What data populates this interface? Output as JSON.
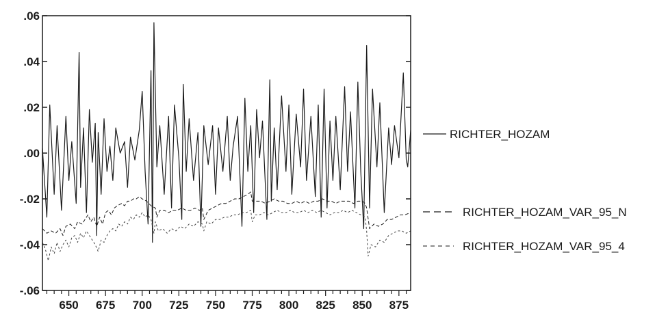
{
  "chart_data": {
    "type": "line",
    "title": "",
    "xlabel": "",
    "ylabel": "",
    "xlim": [
      632,
      883
    ],
    "ylim": [
      -0.06,
      0.06
    ],
    "grid": false,
    "legend_position": "right",
    "x_ticks": [
      650,
      675,
      700,
      725,
      750,
      775,
      800,
      825,
      850,
      875
    ],
    "x_tick_labels": [
      "650",
      "675",
      "700",
      "725",
      "750",
      "775",
      "800",
      "825",
      "850",
      "875"
    ],
    "y_ticks": [
      0.06,
      0.04,
      0.02,
      0.0,
      -0.02,
      -0.04,
      -0.06
    ],
    "y_tick_labels": [
      ".06",
      ".04",
      ".02",
      ".00",
      "-.02",
      "-.04",
      "-.06"
    ],
    "series": [
      {
        "name": "RICHTER_HOZAM",
        "style": "solid",
        "color": "#1a1a1a",
        "x": [
          632,
          635,
          637,
          640,
          642,
          645,
          648,
          650,
          652,
          655,
          657,
          658,
          660,
          662,
          664,
          666,
          668,
          669,
          670,
          672,
          674,
          676,
          678,
          680,
          682,
          685,
          688,
          690,
          692,
          695,
          698,
          700,
          702,
          704,
          706,
          707,
          708,
          710,
          712,
          715,
          718,
          720,
          722,
          725,
          727,
          728,
          730,
          732,
          735,
          738,
          740,
          742,
          745,
          748,
          750,
          752,
          755,
          758,
          760,
          762,
          765,
          768,
          770,
          772,
          774,
          776,
          778,
          780,
          782,
          785,
          787,
          788,
          790,
          792,
          795,
          798,
          800,
          802,
          805,
          808,
          810,
          812,
          815,
          818,
          820,
          822,
          824,
          826,
          828,
          830,
          832,
          835,
          838,
          840,
          842,
          845,
          847,
          849,
          851,
          853,
          855,
          857,
          860,
          862,
          865,
          868,
          870,
          872,
          875,
          878,
          880,
          881,
          883
        ],
        "y": [
          0.002,
          -0.028,
          0.021,
          -0.018,
          0.012,
          -0.025,
          0.016,
          -0.012,
          0.005,
          -0.022,
          0.044,
          -0.015,
          0.011,
          -0.026,
          0.019,
          -0.004,
          0.013,
          -0.036,
          0.009,
          -0.018,
          0.015,
          -0.008,
          0.003,
          -0.012,
          0.011,
          0.0,
          0.005,
          -0.015,
          0.007,
          -0.003,
          0.01,
          0.027,
          -0.008,
          -0.031,
          0.036,
          -0.039,
          0.057,
          -0.006,
          0.012,
          -0.018,
          0.016,
          -0.024,
          0.021,
          -0.002,
          -0.029,
          0.03,
          -0.008,
          0.015,
          -0.012,
          0.009,
          -0.032,
          0.012,
          -0.005,
          0.012,
          -0.018,
          0.011,
          -0.008,
          0.016,
          -0.012,
          0.003,
          0.016,
          -0.032,
          0.024,
          -0.008,
          0.012,
          -0.026,
          0.019,
          -0.002,
          0.014,
          -0.029,
          0.032,
          -0.021,
          0.011,
          -0.016,
          0.025,
          -0.008,
          0.021,
          -0.018,
          0.017,
          -0.006,
          0.028,
          -0.012,
          0.016,
          -0.019,
          0.021,
          -0.028,
          0.028,
          -0.024,
          0.014,
          -0.012,
          0.016,
          -0.016,
          0.029,
          -0.008,
          0.018,
          -0.024,
          0.031,
          -0.008,
          -0.033,
          0.047,
          -0.024,
          0.028,
          -0.006,
          0.022,
          -0.026,
          0.011,
          -0.005,
          0.012,
          -0.002,
          0.035,
          -0.003,
          -0.006,
          0.01
        ]
      },
      {
        "name": "RICHTER_HOZAM_VAR_95_N",
        "style": "long-dash",
        "color": "#1a1a1a",
        "x": [
          632,
          635,
          638,
          641,
          644,
          646,
          648,
          651,
          654,
          656,
          659,
          661,
          663,
          665,
          667,
          669,
          671,
          673,
          675,
          677,
          679,
          681,
          683,
          686,
          688,
          690,
          692,
          694,
          696,
          698,
          700,
          703,
          706,
          709,
          710,
          712,
          715,
          718,
          721,
          724,
          727,
          730,
          733,
          736,
          739,
          741,
          742,
          745,
          748,
          751,
          754,
          757,
          760,
          763,
          766,
          769,
          772,
          774,
          775,
          778,
          781,
          784,
          787,
          790,
          793,
          796,
          799,
          802,
          805,
          808,
          811,
          814,
          817,
          820,
          823,
          826,
          829,
          832,
          835,
          838,
          841,
          844,
          847,
          850,
          852,
          853,
          855,
          858,
          861,
          864,
          867,
          870,
          873,
          876,
          879,
          883
        ],
        "y": [
          -0.033,
          -0.035,
          -0.034,
          -0.035,
          -0.033,
          -0.036,
          -0.032,
          -0.031,
          -0.033,
          -0.03,
          -0.031,
          -0.029,
          -0.027,
          -0.03,
          -0.028,
          -0.032,
          -0.028,
          -0.031,
          -0.026,
          -0.025,
          -0.027,
          -0.024,
          -0.023,
          -0.022,
          -0.023,
          -0.021,
          -0.021,
          -0.02,
          -0.02,
          -0.019,
          -0.02,
          -0.021,
          -0.023,
          -0.024,
          -0.028,
          -0.025,
          -0.025,
          -0.026,
          -0.025,
          -0.025,
          -0.024,
          -0.025,
          -0.025,
          -0.024,
          -0.025,
          -0.024,
          -0.029,
          -0.025,
          -0.024,
          -0.023,
          -0.022,
          -0.022,
          -0.021,
          -0.02,
          -0.02,
          -0.019,
          -0.018,
          -0.017,
          -0.021,
          -0.021,
          -0.021,
          -0.022,
          -0.021,
          -0.02,
          -0.021,
          -0.021,
          -0.022,
          -0.022,
          -0.021,
          -0.022,
          -0.021,
          -0.022,
          -0.021,
          -0.021,
          -0.02,
          -0.021,
          -0.021,
          -0.022,
          -0.021,
          -0.021,
          -0.021,
          -0.022,
          -0.021,
          -0.021,
          -0.022,
          -0.024,
          -0.033,
          -0.031,
          -0.032,
          -0.031,
          -0.029,
          -0.029,
          -0.028,
          -0.027,
          -0.027,
          -0.026
        ]
      },
      {
        "name": "RICHTER_HOZAM_VAR_95_4",
        "style": "short-dash",
        "color": "#444444",
        "x": [
          632,
          634,
          636,
          638,
          640,
          642,
          644,
          646,
          648,
          650,
          652,
          654,
          656,
          658,
          660,
          662,
          664,
          666,
          668,
          670,
          672,
          674,
          676,
          678,
          680,
          682,
          684,
          686,
          688,
          690,
          692,
          694,
          696,
          698,
          700,
          702,
          704,
          706,
          708,
          709,
          711,
          714,
          717,
          720,
          723,
          726,
          729,
          732,
          735,
          738,
          741,
          742,
          744,
          747,
          750,
          753,
          756,
          759,
          762,
          765,
          768,
          771,
          774,
          775,
          777,
          780,
          783,
          786,
          789,
          792,
          795,
          798,
          801,
          804,
          807,
          810,
          813,
          816,
          819,
          822,
          825,
          828,
          831,
          834,
          837,
          840,
          843,
          846,
          849,
          852,
          853,
          854,
          856,
          859,
          862,
          865,
          868,
          871,
          874,
          877,
          880,
          883
        ],
        "y": [
          -0.039,
          -0.042,
          -0.047,
          -0.041,
          -0.044,
          -0.039,
          -0.043,
          -0.04,
          -0.038,
          -0.041,
          -0.037,
          -0.036,
          -0.039,
          -0.035,
          -0.037,
          -0.034,
          -0.036,
          -0.038,
          -0.04,
          -0.043,
          -0.038,
          -0.039,
          -0.036,
          -0.034,
          -0.033,
          -0.034,
          -0.031,
          -0.032,
          -0.03,
          -0.031,
          -0.028,
          -0.029,
          -0.027,
          -0.028,
          -0.026,
          -0.028,
          -0.027,
          -0.029,
          -0.035,
          -0.03,
          -0.034,
          -0.033,
          -0.035,
          -0.033,
          -0.034,
          -0.032,
          -0.033,
          -0.031,
          -0.032,
          -0.03,
          -0.031,
          -0.034,
          -0.03,
          -0.031,
          -0.029,
          -0.029,
          -0.028,
          -0.028,
          -0.027,
          -0.027,
          -0.026,
          -0.026,
          -0.025,
          -0.03,
          -0.027,
          -0.027,
          -0.026,
          -0.027,
          -0.026,
          -0.025,
          -0.026,
          -0.026,
          -0.025,
          -0.026,
          -0.026,
          -0.025,
          -0.026,
          -0.025,
          -0.026,
          -0.025,
          -0.026,
          -0.027,
          -0.026,
          -0.026,
          -0.025,
          -0.026,
          -0.025,
          -0.026,
          -0.027,
          -0.028,
          -0.034,
          -0.045,
          -0.04,
          -0.041,
          -0.038,
          -0.039,
          -0.036,
          -0.035,
          -0.034,
          -0.034,
          -0.035,
          -0.034
        ]
      }
    ]
  }
}
